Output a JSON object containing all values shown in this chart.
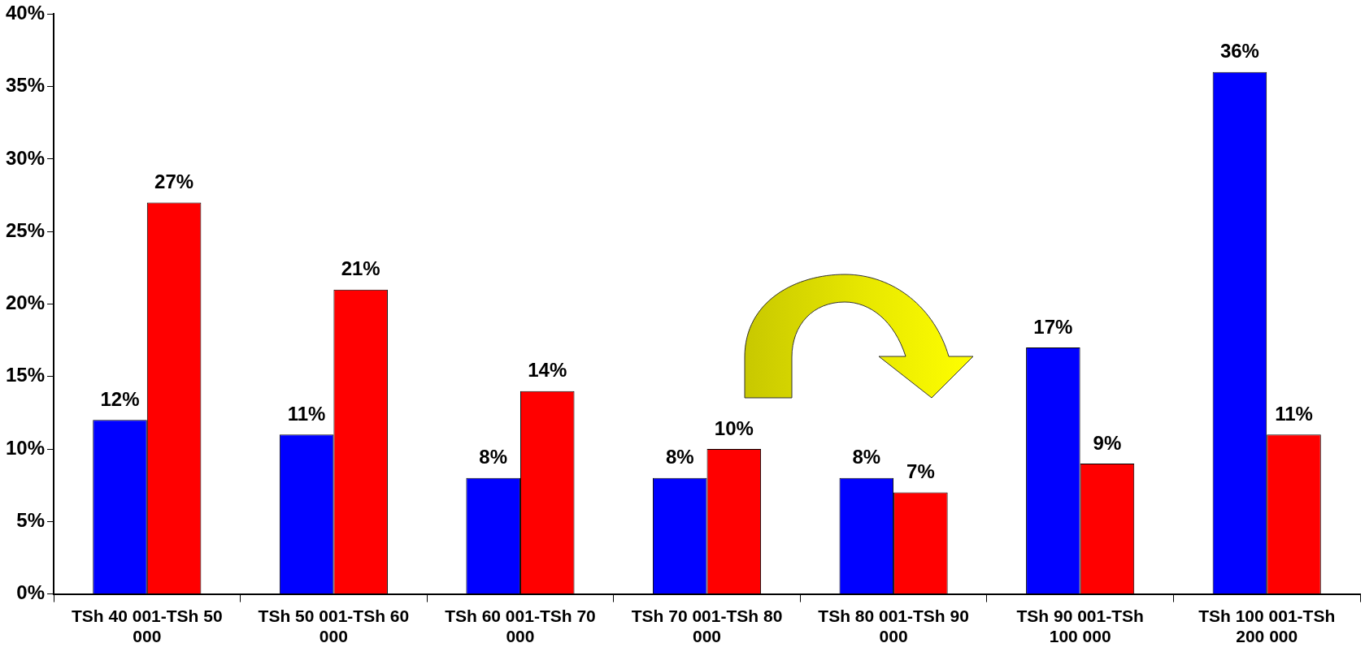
{
  "chart_data": {
    "type": "bar",
    "categories": [
      "TSh 40 001-TSh 50 000",
      "TSh 50 001-TSh 60 000",
      "TSh 60 001-TSh 70 000",
      "TSh 70 001-TSh 80 000",
      "TSh 80 001-TSh 90 000",
      "TSh 90 001-TSh 100 000",
      "TSh 100 001-TSh 200 000"
    ],
    "series": [
      {
        "color": "#0000ff",
        "values": [
          12,
          11,
          8,
          8,
          8,
          17,
          36
        ],
        "value_labels": [
          "12%",
          "11%",
          "8%",
          "8%",
          "8%",
          "17%",
          "36%"
        ]
      },
      {
        "color": "#ff0000",
        "values": [
          27,
          21,
          14,
          10,
          7,
          9,
          11
        ],
        "value_labels": [
          "27%",
          "21%",
          "14%",
          "10%",
          "7%",
          "9%",
          "11%"
        ]
      }
    ],
    "ylim": [
      0,
      40
    ],
    "yticks": [
      {
        "value": 0,
        "label": "0%"
      },
      {
        "value": 5,
        "label": "5%"
      },
      {
        "value": 10,
        "label": "10%"
      },
      {
        "value": 15,
        "label": "15%"
      },
      {
        "value": 20,
        "label": "20%"
      },
      {
        "value": 25,
        "label": "25%"
      },
      {
        "value": 30,
        "label": "30%"
      },
      {
        "value": 35,
        "label": "35%"
      },
      {
        "value": 40,
        "label": "40%"
      }
    ],
    "grid": false,
    "legend": false
  }
}
